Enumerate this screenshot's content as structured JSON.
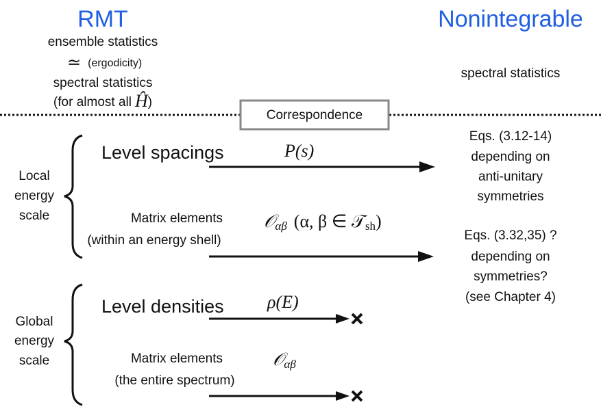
{
  "header": {
    "left_title": "RMT",
    "right_title": "Nonintegrable",
    "left_lines": {
      "line1": "ensemble statistics",
      "approx": {
        "symbol": "≃",
        "note": "(ergodicity)"
      },
      "line3": "spectral statistics",
      "line4": {
        "text": "(for almost all",
        "symbol": "Ĥ",
        "close": ")"
      }
    },
    "right_line": "spectral statistics"
  },
  "correspondence": "Correspondence",
  "groups": [
    {
      "label": [
        "Local",
        "energy",
        "scale"
      ],
      "items": [
        {
          "name": "Level spacings",
          "symbol": {
            "main": "P(s)"
          },
          "result": [
            "Eqs. (3.12-14)",
            "depending on",
            "anti-unitary",
            "symmetries"
          ]
        },
        {
          "name": "Matrix elements",
          "sublabel": "(within an energy shell)",
          "symbol": {
            "main": "𝒪",
            "subscript": "αβ",
            "condition": "(α, β ∈ 𝒯",
            "condition_subscript": "sh",
            "close": ")"
          },
          "result": [
            "Eqs. (3.32,35) ?",
            "depending on",
            "symmetries?",
            "(see Chapter 4)"
          ]
        }
      ]
    },
    {
      "label": [
        "Global",
        "energy",
        "scale"
      ],
      "items": [
        {
          "name": "Level densities",
          "symbol": {
            "main": "ρ(E)"
          }
        },
        {
          "name": "Matrix elements",
          "sublabel": "(the entire spectrum)",
          "symbol": {
            "main": "𝒪",
            "subscript": "αβ"
          }
        }
      ]
    }
  ]
}
